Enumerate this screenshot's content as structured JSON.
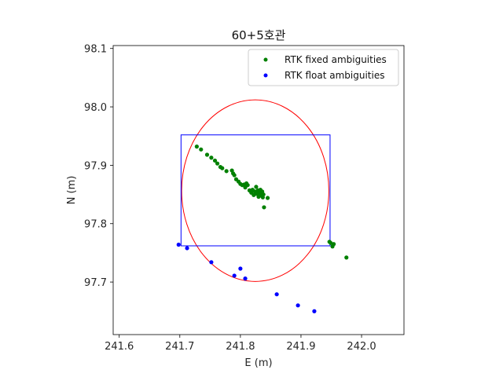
{
  "chart_data": {
    "type": "scatter",
    "title": "60+5호관",
    "xlabel": "E (m)",
    "ylabel": "N (m)",
    "xlim": [
      241.59,
      242.07
    ],
    "ylim": [
      97.61,
      98.105
    ],
    "xticks": [
      241.6,
      241.7,
      241.8,
      241.9,
      242.0
    ],
    "yticks": [
      97.7,
      97.8,
      97.9,
      98.0,
      98.1
    ],
    "xtick_labels": [
      "241.6",
      "241.7",
      "241.8",
      "241.9",
      "242.0"
    ],
    "ytick_labels": [
      "97.7",
      "97.8",
      "97.9",
      "98.0",
      "98.1"
    ],
    "grid": false,
    "legend_position": "top-right",
    "series": [
      {
        "name": "RTK fixed ambiguities",
        "color": "#008000",
        "points": [
          [
            241.728,
            97.932
          ],
          [
            241.735,
            97.927
          ],
          [
            241.745,
            97.918
          ],
          [
            241.752,
            97.913
          ],
          [
            241.758,
            97.908
          ],
          [
            241.762,
            97.903
          ],
          [
            241.767,
            97.897
          ],
          [
            241.77,
            97.895
          ],
          [
            241.777,
            97.89
          ],
          [
            241.786,
            97.891
          ],
          [
            241.788,
            97.886
          ],
          [
            241.79,
            97.883
          ],
          [
            241.793,
            97.876
          ],
          [
            241.797,
            97.872
          ],
          [
            241.8,
            97.868
          ],
          [
            241.803,
            97.866
          ],
          [
            241.806,
            97.867
          ],
          [
            241.808,
            97.862
          ],
          [
            241.81,
            97.869
          ],
          [
            241.812,
            97.866
          ],
          [
            241.815,
            97.857
          ],
          [
            241.818,
            97.853
          ],
          [
            241.82,
            97.858
          ],
          [
            241.822,
            97.849
          ],
          [
            241.824,
            97.855
          ],
          [
            241.826,
            97.863
          ],
          [
            241.827,
            97.851
          ],
          [
            241.829,
            97.857
          ],
          [
            241.83,
            97.846
          ],
          [
            241.832,
            97.852
          ],
          [
            241.833,
            97.858
          ],
          [
            241.834,
            97.848
          ],
          [
            241.836,
            97.855
          ],
          [
            241.837,
            97.845
          ],
          [
            241.838,
            97.85
          ],
          [
            241.839,
            97.828
          ],
          [
            241.845,
            97.844
          ],
          [
            241.947,
            97.769
          ],
          [
            241.949,
            97.767
          ],
          [
            241.952,
            97.761
          ],
          [
            241.954,
            97.765
          ],
          [
            241.975,
            97.742
          ]
        ]
      },
      {
        "name": "RTK float ambiguities",
        "color": "#0000ff",
        "points": [
          [
            241.698,
            97.764
          ],
          [
            241.712,
            97.758
          ],
          [
            241.752,
            97.734
          ],
          [
            241.79,
            97.711
          ],
          [
            241.8,
            97.723
          ],
          [
            241.808,
            97.706
          ],
          [
            241.86,
            97.679
          ],
          [
            241.895,
            97.66
          ],
          [
            241.922,
            97.65
          ]
        ]
      }
    ],
    "overlays": [
      {
        "shape": "circle",
        "color": "#ff0000",
        "center": [
          241.8245,
          97.8565
        ],
        "radius_x": 0.1215,
        "radius_y": 0.1555
      },
      {
        "shape": "rectangle",
        "color": "#0000ff",
        "x_range": [
          241.702,
          241.948
        ],
        "y_range": [
          97.762,
          97.952
        ]
      }
    ]
  }
}
